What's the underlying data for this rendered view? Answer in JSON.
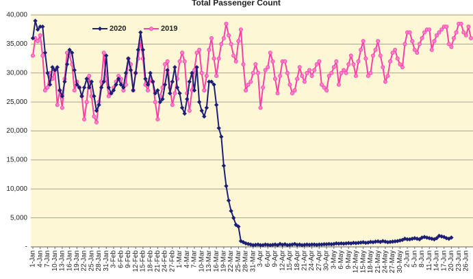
{
  "chart_data": {
    "type": "line",
    "title": "Total Passenger Count",
    "categories": [
      "1-Jan",
      null,
      null,
      "4-Jan",
      null,
      null,
      "7-Jan",
      null,
      null,
      "10-Jan",
      null,
      null,
      "13-Jan",
      null,
      null,
      "16-Jan",
      null,
      null,
      "19-Jan",
      null,
      null,
      "22-Jan",
      null,
      null,
      "25-Jan",
      null,
      null,
      "28-Jan",
      null,
      null,
      "31-Jan",
      null,
      null,
      "3-Feb",
      null,
      null,
      "6-Feb",
      null,
      null,
      "9-Feb",
      null,
      null,
      "12-Feb",
      null,
      null,
      "15-Feb",
      null,
      null,
      "18-Feb",
      null,
      null,
      "21-Feb",
      null,
      null,
      "24-Feb",
      null,
      null,
      "27-Feb",
      null,
      null,
      "1-Mar",
      null,
      null,
      "4-Mar",
      null,
      null,
      "7-Mar",
      null,
      null,
      "10-Mar",
      null,
      null,
      "13-Mar",
      null,
      null,
      "16-Mar",
      null,
      null,
      "19-Mar",
      null,
      null,
      "22-Mar",
      null,
      null,
      "25-Mar",
      null,
      null,
      "28-Mar",
      null,
      null,
      "31-Mar",
      null,
      null,
      "3-Apr",
      null,
      null,
      "6-Apr",
      null,
      null,
      "9-Apr",
      null,
      null,
      "12-Apr",
      null,
      null,
      "15-Apr",
      null,
      null,
      "18-Apr",
      null,
      null,
      "21-Apr",
      null,
      null,
      "24-Apr",
      null,
      null,
      "27-Apr",
      null,
      null,
      "30-Apr",
      null,
      null,
      "3-May",
      null,
      null,
      "6-May",
      null,
      null,
      "9-May",
      null,
      null,
      "12-May",
      null,
      null,
      "15-May",
      null,
      null,
      "18-May",
      null,
      null,
      "21-May",
      null,
      null,
      "24-May",
      null,
      null,
      "27-May",
      null,
      null,
      "30-May",
      null,
      null,
      "2-Jun",
      null,
      null,
      "5-Jun",
      null,
      null,
      "8-Jun",
      null,
      null,
      "11-Jun",
      null,
      null,
      "14-Jun",
      null,
      null,
      "17-Jun",
      null,
      null,
      "20-Jun",
      null,
      null,
      "23-Jun",
      null,
      null,
      "26-Jun",
      null,
      null
    ],
    "series": [
      {
        "name": "2020",
        "color": "#1c1f73",
        "marker": "diamond",
        "values": [
          36000,
          39000,
          37500,
          38000,
          38000,
          33500,
          30000,
          28000,
          31000,
          30500,
          31000,
          27000,
          26000,
          28500,
          31500,
          34000,
          33500,
          30500,
          28000,
          27500,
          26000,
          27500,
          29000,
          27500,
          28500,
          26000,
          23500,
          24500,
          27500,
          28500,
          33000,
          27500,
          26500,
          27000,
          28000,
          29000,
          28000,
          27500,
          30000,
          32500,
          30500,
          27000,
          30000,
          34000,
          37000,
          34000,
          29000,
          28000,
          30000,
          28500,
          26500,
          27000,
          25000,
          25500,
          28000,
          30500,
          26500,
          28500,
          31000,
          27500,
          26500,
          24000,
          23000,
          25500,
          28500,
          30000,
          27000,
          31000,
          25000,
          23500,
          22500,
          24000,
          28500,
          28500,
          28000,
          24500,
          20500,
          19000,
          14000,
          10500,
          8000,
          6200,
          5000,
          3800,
          3500,
          1000,
          800,
          600,
          500,
          400,
          300,
          350,
          400,
          300,
          300,
          400,
          350,
          300,
          350,
          400,
          300,
          500,
          350,
          450,
          300,
          350,
          400,
          500,
          350,
          400,
          300,
          350,
          400,
          350,
          400,
          400,
          350,
          400,
          400,
          450,
          450,
          500,
          450,
          500,
          600,
          550,
          600,
          550,
          600,
          650,
          600,
          700,
          650,
          700,
          750,
          800,
          700,
          750,
          850,
          800,
          900,
          950,
          850,
          1000,
          900,
          800,
          850,
          900,
          950,
          1000,
          1100,
          1200,
          1400,
          1300,
          1300,
          1400,
          1500,
          1400,
          1300,
          1600,
          1700,
          1600,
          1500,
          1400,
          1300,
          1500,
          1900,
          1800,
          1700,
          1500,
          1400,
          1600,
          null,
          null,
          null,
          null,
          null,
          null,
          null,
          null
        ]
      },
      {
        "name": "2019",
        "color": "#ff3fa6",
        "marker": "circle",
        "values": [
          33000,
          36000,
          35500,
          36500,
          33000,
          27000,
          27500,
          30000,
          29000,
          30500,
          24500,
          27000,
          24000,
          29000,
          33500,
          33000,
          31500,
          27000,
          28500,
          27500,
          26000,
          22000,
          25000,
          29500,
          26000,
          22500,
          21500,
          25000,
          28500,
          33500,
          29000,
          26000,
          26500,
          27500,
          28500,
          29500,
          29000,
          27000,
          28000,
          32500,
          31500,
          27000,
          30000,
          32500,
          35500,
          32500,
          28000,
          27000,
          29000,
          28500,
          25000,
          22000,
          26000,
          27500,
          31500,
          32000,
          27500,
          24500,
          26500,
          29000,
          32000,
          33500,
          32000,
          26500,
          23500,
          27000,
          30500,
          33500,
          34000,
          30000,
          27000,
          29500,
          34000,
          36000,
          32500,
          29500,
          32500,
          35000,
          36000,
          38500,
          36500,
          35000,
          33000,
          32000,
          35500,
          37500,
          31500,
          27000,
          28000,
          28500,
          30000,
          31500,
          30000,
          24000,
          27500,
          30500,
          31000,
          33500,
          32000,
          29000,
          26500,
          29500,
          32000,
          32000,
          30000,
          28000,
          26500,
          27000,
          29000,
          31000,
          29500,
          28500,
          30000,
          30500,
          29500,
          30500,
          31500,
          32000,
          28000,
          27500,
          27000,
          29500,
          30000,
          31000,
          32000,
          28000,
          30000,
          30500,
          30000,
          31500,
          33000,
          31500,
          29500,
          32000,
          34000,
          35500,
          32500,
          29500,
          30000,
          33000,
          34000,
          35500,
          33000,
          31000,
          28500,
          29500,
          32000,
          33500,
          34000,
          32500,
          31500,
          31000,
          35000,
          37000,
          37000,
          35500,
          34000,
          33500,
          35000,
          36000,
          37000,
          37500,
          37500,
          34000,
          35500,
          36500,
          37000,
          37500,
          38000,
          38000,
          35000,
          34500,
          36000,
          37000,
          38500,
          38500,
          37000,
          36500,
          38000,
          36000
        ]
      }
    ],
    "ylim": [
      0,
      40000
    ],
    "yticks": [
      {
        "value": 0,
        "label": "-"
      },
      {
        "value": 5000,
        "label": "5,000"
      },
      {
        "value": 10000,
        "label": "10,000"
      },
      {
        "value": 15000,
        "label": "15,000"
      },
      {
        "value": 20000,
        "label": "20,000"
      },
      {
        "value": 25000,
        "label": "25,000"
      },
      {
        "value": 30000,
        "label": "30,000"
      },
      {
        "value": 35000,
        "label": "35,000"
      },
      {
        "value": 40000,
        "label": "40,000"
      }
    ],
    "grid": true
  }
}
